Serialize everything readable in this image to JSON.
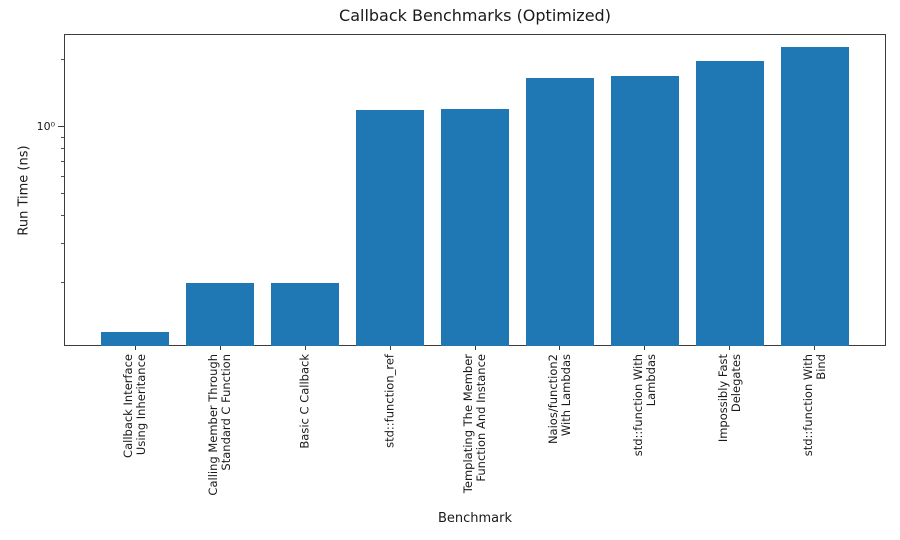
{
  "chart_data": {
    "type": "bar",
    "title": "Callback Benchmarks (Optimized)",
    "xlabel": "Benchmark",
    "ylabel": "Run Time (ns)",
    "yscale": "log",
    "ylim": [
      0.104,
      2.61
    ],
    "grid": false,
    "legend": null,
    "bar_color": "#1f77b4",
    "categories": [
      "Callback Interface\nUsing Inheritance",
      "Calling Member Through\nStandard C Function",
      "Basic C Callback",
      "std::function_ref",
      "Templating The Member\nFunction And Instance",
      "Naios/function2\nWith Lambdas",
      "std::function With\nLambdas",
      "Impossibly Fast\nDelegates",
      "std::function With\nBind"
    ],
    "values": [
      0.12,
      0.2,
      0.2,
      1.19,
      1.2,
      1.66,
      1.7,
      1.98,
      2.28
    ],
    "y_major_ticks": [
      1
    ],
    "y_major_tick_labels": [
      "10⁰"
    ],
    "y_minor_ticks": [
      0.2,
      0.3,
      0.4,
      0.5,
      0.6,
      0.7,
      0.8,
      0.9,
      2.0
    ]
  }
}
